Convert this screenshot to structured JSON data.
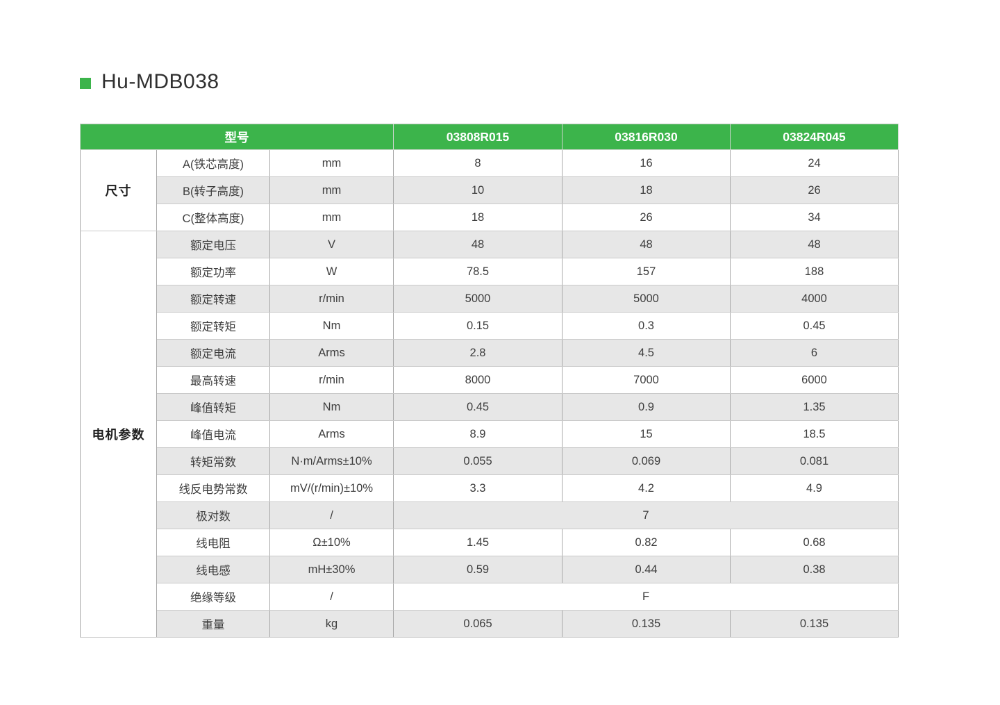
{
  "page": {
    "title": "Hu-MDB038"
  },
  "colors": {
    "accent_green": "#3cb44b",
    "row_alt_gray": "#e7e7e7",
    "header_text": "#ffffff",
    "body_text": "#3d3d3d"
  },
  "table": {
    "header": {
      "model_label": "型号",
      "models": [
        "03808R015",
        "03816R030",
        "03824R045"
      ]
    },
    "sections": [
      {
        "label": "尺寸",
        "rows": [
          {
            "name": "A(铁芯高度)",
            "unit": "mm",
            "values": [
              "8",
              "16",
              "24"
            ]
          },
          {
            "name": "B(转子高度)",
            "unit": "mm",
            "values": [
              "10",
              "18",
              "26"
            ]
          },
          {
            "name": "C(整体高度)",
            "unit": "mm",
            "values": [
              "18",
              "26",
              "34"
            ]
          }
        ]
      },
      {
        "label": "电机参数",
        "rows": [
          {
            "name": "额定电压",
            "unit": "V",
            "values": [
              "48",
              "48",
              "48"
            ]
          },
          {
            "name": "额定功率",
            "unit": "W",
            "values": [
              "78.5",
              "157",
              "188"
            ]
          },
          {
            "name": "额定转速",
            "unit": "r/min",
            "values": [
              "5000",
              "5000",
              "4000"
            ]
          },
          {
            "name": "额定转矩",
            "unit": "Nm",
            "values": [
              "0.15",
              "0.3",
              "0.45"
            ]
          },
          {
            "name": "额定电流",
            "unit": "Arms",
            "values": [
              "2.8",
              "4.5",
              "6"
            ]
          },
          {
            "name": "最高转速",
            "unit": "r/min",
            "values": [
              "8000",
              "7000",
              "6000"
            ]
          },
          {
            "name": "峰值转矩",
            "unit": "Nm",
            "values": [
              "0.45",
              "0.9",
              "1.35"
            ]
          },
          {
            "name": "峰值电流",
            "unit": "Arms",
            "values": [
              "8.9",
              "15",
              "18.5"
            ]
          },
          {
            "name": "转矩常数",
            "unit": "N·m/Arms±10%",
            "values": [
              "0.055",
              "0.069",
              "0.081"
            ]
          },
          {
            "name": "线反电势常数",
            "unit": "mV/(r/min)±10%",
            "values": [
              "3.3",
              "4.2",
              "4.9"
            ]
          },
          {
            "name": "极对数",
            "unit": "/",
            "values": [
              "7"
            ],
            "span_all": true
          },
          {
            "name": "线电阻",
            "unit": "Ω±10%",
            "values": [
              "1.45",
              "0.82",
              "0.68"
            ]
          },
          {
            "name": "线电感",
            "unit": "mH±30%",
            "values": [
              "0.59",
              "0.44",
              "0.38"
            ]
          },
          {
            "name": "绝缘等级",
            "unit": "/",
            "values": [
              "F"
            ],
            "span_all": true
          },
          {
            "name": "重量",
            "unit": "kg",
            "values": [
              "0.065",
              "0.135",
              "0.135"
            ]
          }
        ]
      }
    ]
  }
}
